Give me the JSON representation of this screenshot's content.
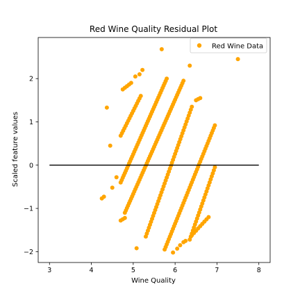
{
  "chart_data": {
    "type": "scatter",
    "title": "Red Wine Quality Residual Plot",
    "xlabel": "Wine Quality",
    "ylabel": "Scaled feature values",
    "xlim": [
      2.73,
      8.27
    ],
    "ylim": [
      -2.25,
      2.95
    ],
    "xticks": [
      3,
      4,
      5,
      6,
      7,
      8
    ],
    "yticks": [
      -2,
      -1,
      0,
      1,
      2
    ],
    "ytick_labels": [
      "−2",
      "−1",
      "0",
      "1",
      "2"
    ],
    "grid": false,
    "legend_position": "top-right",
    "series": [
      {
        "name": "Red Wine Data",
        "color": "#ffa500",
        "segments": [
          {
            "x0": 4.7,
            "y0": -0.4,
            "x1": 5.8,
            "y1": 2.0,
            "step": 0.025
          },
          {
            "x0": 4.8,
            "y0": -1.1,
            "x1": 6.2,
            "y1": 1.95,
            "step": 0.025
          },
          {
            "x0": 5.3,
            "y0": -1.65,
            "x1": 6.4,
            "y1": 1.35,
            "step": 0.025
          },
          {
            "x0": 5.75,
            "y0": -1.95,
            "x1": 6.95,
            "y1": 0.92,
            "step": 0.025
          },
          {
            "x0": 6.35,
            "y0": -1.72,
            "x1": 6.95,
            "y1": -0.05,
            "step": 0.025
          },
          {
            "x0": 4.7,
            "y0": 0.68,
            "x1": 5.18,
            "y1": 1.6,
            "step": 0.03
          },
          {
            "x0": 4.75,
            "y0": 1.75,
            "x1": 4.95,
            "y1": 1.9,
            "step": 0.05
          },
          {
            "x0": 6.4,
            "y0": -1.62,
            "x1": 6.8,
            "y1": -1.2,
            "step": 0.05
          },
          {
            "x0": 4.7,
            "y0": -1.28,
            "x1": 4.8,
            "y1": -1.22,
            "step": 0.05
          },
          {
            "x0": 6.5,
            "y0": 1.5,
            "x1": 6.6,
            "y1": 1.55,
            "step": 0.05
          }
        ],
        "points": [
          [
            5.68,
            2.68
          ],
          [
            7.5,
            2.45
          ],
          [
            6.35,
            2.3
          ],
          [
            5.22,
            2.2
          ],
          [
            5.15,
            2.1
          ],
          [
            5.05,
            2.05
          ],
          [
            4.37,
            1.33
          ],
          [
            4.45,
            0.45
          ],
          [
            4.6,
            -0.28
          ],
          [
            4.5,
            -0.52
          ],
          [
            4.3,
            -0.73
          ],
          [
            4.25,
            -0.77
          ],
          [
            5.08,
            -1.92
          ],
          [
            5.95,
            -2.02
          ],
          [
            6.05,
            -1.93
          ],
          [
            6.12,
            -1.85
          ],
          [
            6.2,
            -1.78
          ],
          [
            6.25,
            -1.75
          ]
        ]
      }
    ],
    "reference_line": {
      "y": 0,
      "x_range": [
        3,
        8
      ],
      "color": "#000000"
    }
  }
}
